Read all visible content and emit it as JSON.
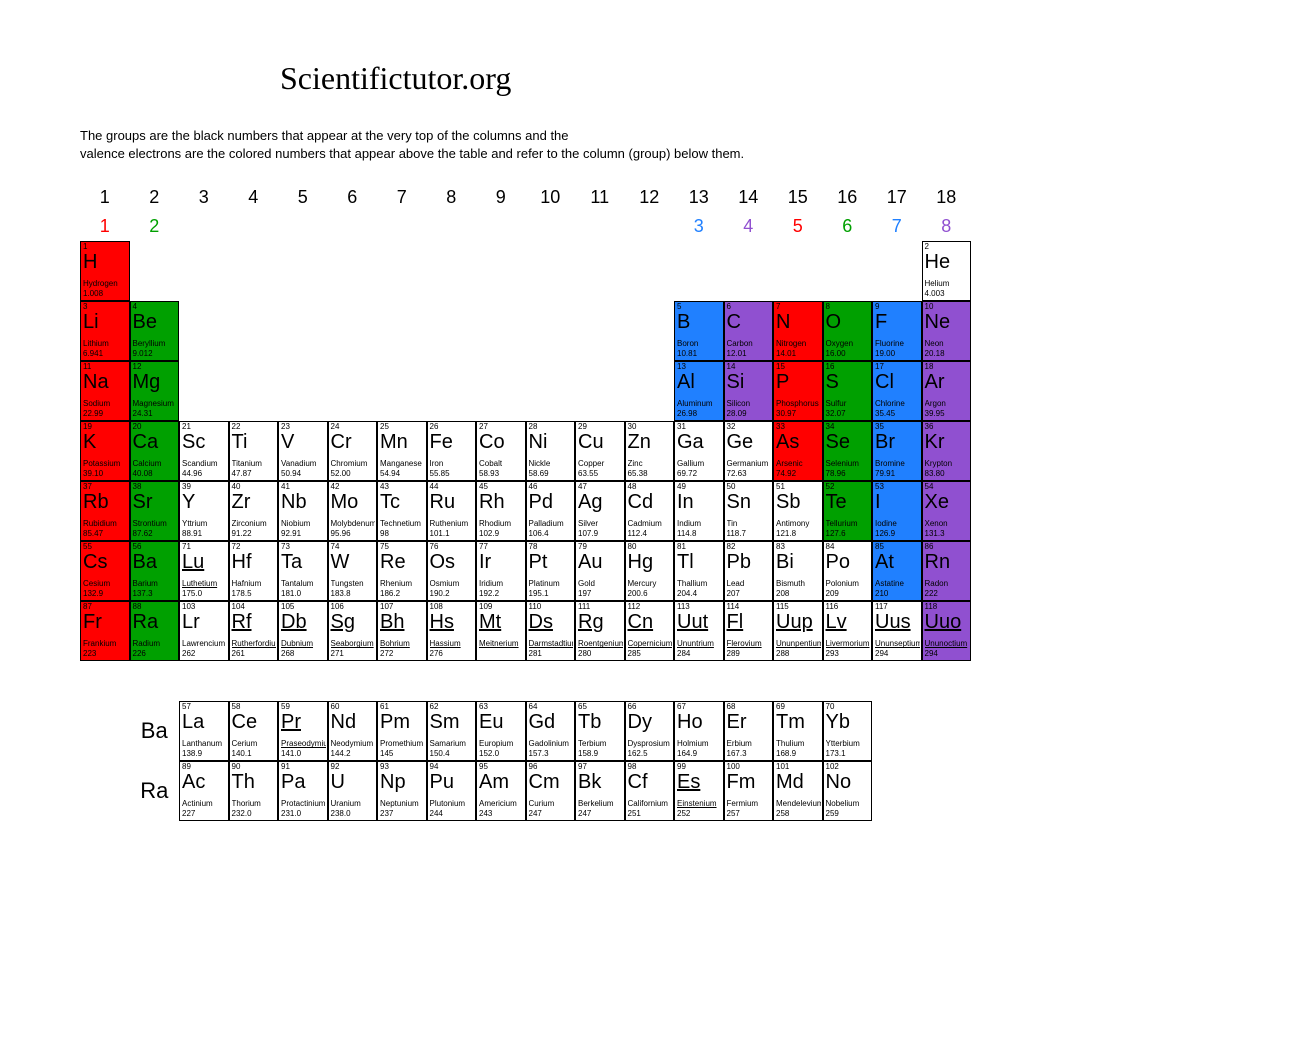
{
  "title": "Scientifictutor.org",
  "description_line1": "The groups are the black numbers that appear at the very top of the columns and the",
  "description_line2": "valence electrons are the colored numbers that appear above the table and refer to the column (group) below them.",
  "groups": [
    "1",
    "2",
    "3",
    "4",
    "5",
    "6",
    "7",
    "8",
    "9",
    "10",
    "11",
    "12",
    "13",
    "14",
    "15",
    "16",
    "17",
    "18"
  ],
  "valence": [
    {
      "col": 1,
      "n": "1",
      "color": "#ff0000"
    },
    {
      "col": 2,
      "n": "2",
      "color": "#00a000"
    },
    {
      "col": 13,
      "n": "3",
      "color": "#2080ff"
    },
    {
      "col": 14,
      "n": "4",
      "color": "#9050d0"
    },
    {
      "col": 15,
      "n": "5",
      "color": "#ff0000"
    },
    {
      "col": 16,
      "n": "6",
      "color": "#00a000"
    },
    {
      "col": 17,
      "n": "7",
      "color": "#2080ff"
    },
    {
      "col": 18,
      "n": "8",
      "color": "#9050d0"
    }
  ],
  "colors": {
    "red": "#ff0000",
    "green": "#00a000",
    "blue": "#2080ff",
    "purple": "#9050d0",
    "white": "#ffffff",
    "black": "#000000"
  },
  "elements": [
    {
      "r": 1,
      "c": 1,
      "n": "1",
      "s": "H",
      "name": "Hydrogen",
      "m": "1.008",
      "bg": "#ff0000"
    },
    {
      "r": 1,
      "c": 18,
      "n": "2",
      "s": "He",
      "name": "Helium",
      "m": "4.003",
      "bg": "#ffffff"
    },
    {
      "r": 2,
      "c": 1,
      "n": "3",
      "s": "Li",
      "name": "Lithium",
      "m": "6.941",
      "bg": "#ff0000"
    },
    {
      "r": 2,
      "c": 2,
      "n": "4",
      "s": "Be",
      "name": "Beryllium",
      "m": "9.012",
      "bg": "#00a000"
    },
    {
      "r": 2,
      "c": 13,
      "n": "5",
      "s": "B",
      "name": "Boron",
      "m": "10.81",
      "bg": "#2080ff"
    },
    {
      "r": 2,
      "c": 14,
      "n": "6",
      "s": "C",
      "name": "Carbon",
      "m": "12.01",
      "bg": "#9050d0"
    },
    {
      "r": 2,
      "c": 15,
      "n": "7",
      "s": "N",
      "name": "Nitrogen",
      "m": "14.01",
      "bg": "#ff0000"
    },
    {
      "r": 2,
      "c": 16,
      "n": "8",
      "s": "O",
      "name": "Oxygen",
      "m": "16.00",
      "bg": "#00a000"
    },
    {
      "r": 2,
      "c": 17,
      "n": "9",
      "s": "F",
      "name": "Fluorine",
      "m": "19.00",
      "bg": "#2080ff"
    },
    {
      "r": 2,
      "c": 18,
      "n": "10",
      "s": "Ne",
      "name": "Neon",
      "m": "20.18",
      "bg": "#9050d0"
    },
    {
      "r": 3,
      "c": 1,
      "n": "11",
      "s": "Na",
      "name": "Sodium",
      "m": "22.99",
      "bg": "#ff0000"
    },
    {
      "r": 3,
      "c": 2,
      "n": "12",
      "s": "Mg",
      "name": "Magnesium",
      "m": "24.31",
      "bg": "#00a000"
    },
    {
      "r": 3,
      "c": 13,
      "n": "13",
      "s": "Al",
      "name": "Aluminum",
      "m": "26.98",
      "bg": "#2080ff"
    },
    {
      "r": 3,
      "c": 14,
      "n": "14",
      "s": "Si",
      "name": "Silicon",
      "m": "28.09",
      "bg": "#9050d0"
    },
    {
      "r": 3,
      "c": 15,
      "n": "15",
      "s": "P",
      "name": "Phosphorus",
      "m": "30.97",
      "bg": "#ff0000"
    },
    {
      "r": 3,
      "c": 16,
      "n": "16",
      "s": "S",
      "name": "Sulfur",
      "m": "32.07",
      "bg": "#00a000"
    },
    {
      "r": 3,
      "c": 17,
      "n": "17",
      "s": "Cl",
      "name": "Chlorine",
      "m": "35.45",
      "bg": "#2080ff"
    },
    {
      "r": 3,
      "c": 18,
      "n": "18",
      "s": "Ar",
      "name": "Argon",
      "m": "39.95",
      "bg": "#9050d0"
    },
    {
      "r": 4,
      "c": 1,
      "n": "19",
      "s": "K",
      "name": "Potassium",
      "m": "39.10",
      "bg": "#ff0000"
    },
    {
      "r": 4,
      "c": 2,
      "n": "20",
      "s": "Ca",
      "name": "Calcium",
      "m": "40.08",
      "bg": "#00a000"
    },
    {
      "r": 4,
      "c": 3,
      "n": "21",
      "s": "Sc",
      "name": "Scandium",
      "m": "44.96",
      "bg": "#ffffff"
    },
    {
      "r": 4,
      "c": 4,
      "n": "22",
      "s": "Ti",
      "name": "Titanium",
      "m": "47.87",
      "bg": "#ffffff"
    },
    {
      "r": 4,
      "c": 5,
      "n": "23",
      "s": "V",
      "name": "Vanadium",
      "m": "50.94",
      "bg": "#ffffff"
    },
    {
      "r": 4,
      "c": 6,
      "n": "24",
      "s": "Cr",
      "name": "Chromium",
      "m": "52.00",
      "bg": "#ffffff"
    },
    {
      "r": 4,
      "c": 7,
      "n": "25",
      "s": "Mn",
      "name": "Manganese",
      "m": "54.94",
      "bg": "#ffffff"
    },
    {
      "r": 4,
      "c": 8,
      "n": "26",
      "s": "Fe",
      "name": "Iron",
      "m": "55.85",
      "bg": "#ffffff"
    },
    {
      "r": 4,
      "c": 9,
      "n": "27",
      "s": "Co",
      "name": "Cobalt",
      "m": "58.93",
      "bg": "#ffffff"
    },
    {
      "r": 4,
      "c": 10,
      "n": "28",
      "s": "Ni",
      "name": "Nickle",
      "m": "58.69",
      "bg": "#ffffff"
    },
    {
      "r": 4,
      "c": 11,
      "n": "29",
      "s": "Cu",
      "name": "Copper",
      "m": "63.55",
      "bg": "#ffffff"
    },
    {
      "r": 4,
      "c": 12,
      "n": "30",
      "s": "Zn",
      "name": "Zinc",
      "m": "65.38",
      "bg": "#ffffff"
    },
    {
      "r": 4,
      "c": 13,
      "n": "31",
      "s": "Ga",
      "name": "Gallium",
      "m": "69.72",
      "bg": "#ffffff"
    },
    {
      "r": 4,
      "c": 14,
      "n": "32",
      "s": "Ge",
      "name": "Germanium",
      "m": "72.63",
      "bg": "#ffffff"
    },
    {
      "r": 4,
      "c": 15,
      "n": "33",
      "s": "As",
      "name": "Arsenic",
      "m": "74.92",
      "bg": "#ff0000"
    },
    {
      "r": 4,
      "c": 16,
      "n": "34",
      "s": "Se",
      "name": "Selenium",
      "m": "78.96",
      "bg": "#00a000"
    },
    {
      "r": 4,
      "c": 17,
      "n": "35",
      "s": "Br",
      "name": "Bromine",
      "m": "79.91",
      "bg": "#2080ff"
    },
    {
      "r": 4,
      "c": 18,
      "n": "36",
      "s": "Kr",
      "name": "Krypton",
      "m": "83.80",
      "bg": "#9050d0"
    },
    {
      "r": 5,
      "c": 1,
      "n": "37",
      "s": "Rb",
      "name": "Rubidium",
      "m": "85.47",
      "bg": "#ff0000"
    },
    {
      "r": 5,
      "c": 2,
      "n": "38",
      "s": "Sr",
      "name": "Strontium",
      "m": "87.62",
      "bg": "#00a000"
    },
    {
      "r": 5,
      "c": 3,
      "n": "39",
      "s": "Y",
      "name": "Yttrium",
      "m": "88.91",
      "bg": "#ffffff"
    },
    {
      "r": 5,
      "c": 4,
      "n": "40",
      "s": "Zr",
      "name": "Zirconium",
      "m": "91.22",
      "bg": "#ffffff"
    },
    {
      "r": 5,
      "c": 5,
      "n": "41",
      "s": "Nb",
      "name": "Niobium",
      "m": "92.91",
      "bg": "#ffffff"
    },
    {
      "r": 5,
      "c": 6,
      "n": "42",
      "s": "Mo",
      "name": "Molybdenum",
      "m": "95.96",
      "bg": "#ffffff"
    },
    {
      "r": 5,
      "c": 7,
      "n": "43",
      "s": "Tc",
      "name": "Technetium",
      "m": "98",
      "bg": "#ffffff"
    },
    {
      "r": 5,
      "c": 8,
      "n": "44",
      "s": "Ru",
      "name": "Ruthenium",
      "m": "101.1",
      "bg": "#ffffff"
    },
    {
      "r": 5,
      "c": 9,
      "n": "45",
      "s": "Rh",
      "name": "Rhodium",
      "m": "102.9",
      "bg": "#ffffff"
    },
    {
      "r": 5,
      "c": 10,
      "n": "46",
      "s": "Pd",
      "name": "Palladium",
      "m": "106.4",
      "bg": "#ffffff"
    },
    {
      "r": 5,
      "c": 11,
      "n": "47",
      "s": "Ag",
      "name": "Silver",
      "m": "107.9",
      "bg": "#ffffff"
    },
    {
      "r": 5,
      "c": 12,
      "n": "48",
      "s": "Cd",
      "name": "Cadmium",
      "m": "112.4",
      "bg": "#ffffff"
    },
    {
      "r": 5,
      "c": 13,
      "n": "49",
      "s": "In",
      "name": "Indium",
      "m": "114.8",
      "bg": "#ffffff"
    },
    {
      "r": 5,
      "c": 14,
      "n": "50",
      "s": "Sn",
      "name": "Tin",
      "m": "118.7",
      "bg": "#ffffff"
    },
    {
      "r": 5,
      "c": 15,
      "n": "51",
      "s": "Sb",
      "name": "Antimony",
      "m": "121.8",
      "bg": "#ffffff"
    },
    {
      "r": 5,
      "c": 16,
      "n": "52",
      "s": "Te",
      "name": "Tellurium",
      "m": "127.6",
      "bg": "#00a000"
    },
    {
      "r": 5,
      "c": 17,
      "n": "53",
      "s": "I",
      "name": "Iodine",
      "m": "126.9",
      "bg": "#2080ff"
    },
    {
      "r": 5,
      "c": 18,
      "n": "54",
      "s": "Xe",
      "name": "Xenon",
      "m": "131.3",
      "bg": "#9050d0"
    },
    {
      "r": 6,
      "c": 1,
      "n": "55",
      "s": "Cs",
      "name": "Cesium",
      "m": "132.9",
      "bg": "#ff0000"
    },
    {
      "r": 6,
      "c": 2,
      "n": "56",
      "s": "Ba",
      "name": "Barium",
      "m": "137.3",
      "bg": "#00a000"
    },
    {
      "r": 6,
      "c": 3,
      "n": "71",
      "s": "Lu",
      "name": "Luthetium",
      "m": "175.0",
      "bg": "#ffffff",
      "ul": true
    },
    {
      "r": 6,
      "c": 4,
      "n": "72",
      "s": "Hf",
      "name": "Hafnium",
      "m": "178.5",
      "bg": "#ffffff"
    },
    {
      "r": 6,
      "c": 5,
      "n": "73",
      "s": "Ta",
      "name": "Tantalum",
      "m": "181.0",
      "bg": "#ffffff"
    },
    {
      "r": 6,
      "c": 6,
      "n": "74",
      "s": "W",
      "name": "Tungsten",
      "m": "183.8",
      "bg": "#ffffff"
    },
    {
      "r": 6,
      "c": 7,
      "n": "75",
      "s": "Re",
      "name": "Rhenium",
      "m": "186.2",
      "bg": "#ffffff"
    },
    {
      "r": 6,
      "c": 8,
      "n": "76",
      "s": "Os",
      "name": "Osmium",
      "m": "190.2",
      "bg": "#ffffff"
    },
    {
      "r": 6,
      "c": 9,
      "n": "77",
      "s": "Ir",
      "name": "Iridium",
      "m": "192.2",
      "bg": "#ffffff"
    },
    {
      "r": 6,
      "c": 10,
      "n": "78",
      "s": "Pt",
      "name": "Platinum",
      "m": "195.1",
      "bg": "#ffffff"
    },
    {
      "r": 6,
      "c": 11,
      "n": "79",
      "s": "Au",
      "name": "Gold",
      "m": "197",
      "bg": "#ffffff"
    },
    {
      "r": 6,
      "c": 12,
      "n": "80",
      "s": "Hg",
      "name": "Mercury",
      "m": "200.6",
      "bg": "#ffffff"
    },
    {
      "r": 6,
      "c": 13,
      "n": "81",
      "s": "Tl",
      "name": "Thallium",
      "m": "204.4",
      "bg": "#ffffff"
    },
    {
      "r": 6,
      "c": 14,
      "n": "82",
      "s": "Pb",
      "name": "Lead",
      "m": "207",
      "bg": "#ffffff"
    },
    {
      "r": 6,
      "c": 15,
      "n": "83",
      "s": "Bi",
      "name": "Bismuth",
      "m": "208",
      "bg": "#ffffff"
    },
    {
      "r": 6,
      "c": 16,
      "n": "84",
      "s": "Po",
      "name": "Polonium",
      "m": "209",
      "bg": "#ffffff"
    },
    {
      "r": 6,
      "c": 17,
      "n": "85",
      "s": "At",
      "name": "Astatine",
      "m": "210",
      "bg": "#2080ff"
    },
    {
      "r": 6,
      "c": 18,
      "n": "86",
      "s": "Rn",
      "name": "Radon",
      "m": "222",
      "bg": "#9050d0"
    },
    {
      "r": 7,
      "c": 1,
      "n": "87",
      "s": "Fr",
      "name": "Frankium",
      "m": "223",
      "bg": "#ff0000"
    },
    {
      "r": 7,
      "c": 2,
      "n": "88",
      "s": "Ra",
      "name": "Radium",
      "m": "226",
      "bg": "#00a000"
    },
    {
      "r": 7,
      "c": 3,
      "n": "103",
      "s": "Lr",
      "name": "Lawrencium",
      "m": "262",
      "bg": "#ffffff"
    },
    {
      "r": 7,
      "c": 4,
      "n": "104",
      "s": "Rf",
      "name": "Rutherfordium",
      "m": "261",
      "bg": "#ffffff",
      "ul": true
    },
    {
      "r": 7,
      "c": 5,
      "n": "105",
      "s": "Db",
      "name": "Dubnium",
      "m": "268",
      "bg": "#ffffff",
      "ul": true
    },
    {
      "r": 7,
      "c": 6,
      "n": "106",
      "s": "Sg",
      "name": "Seaborgium",
      "m": "271",
      "bg": "#ffffff",
      "ul": true
    },
    {
      "r": 7,
      "c": 7,
      "n": "107",
      "s": "Bh",
      "name": "Bohrium",
      "m": "272",
      "bg": "#ffffff",
      "ul": true
    },
    {
      "r": 7,
      "c": 8,
      "n": "108",
      "s": "Hs",
      "name": "Hassium",
      "m": "276",
      "bg": "#ffffff",
      "ul": true
    },
    {
      "r": 7,
      "c": 9,
      "n": "109",
      "s": "Mt",
      "name": "Meitnerium",
      "m": "",
      "bg": "#ffffff",
      "ul": true
    },
    {
      "r": 7,
      "c": 10,
      "n": "110",
      "s": "Ds",
      "name": "Darmstadtium",
      "m": "281",
      "bg": "#ffffff",
      "ul": true
    },
    {
      "r": 7,
      "c": 11,
      "n": "111",
      "s": "Rg",
      "name": "Roentgenium",
      "m": "280",
      "bg": "#ffffff",
      "ul": true
    },
    {
      "r": 7,
      "c": 12,
      "n": "112",
      "s": "Cn",
      "name": "Copernicium",
      "m": "285",
      "bg": "#ffffff",
      "ul": true
    },
    {
      "r": 7,
      "c": 13,
      "n": "113",
      "s": "Uut",
      "name": "Ununtrium",
      "m": "284",
      "bg": "#ffffff",
      "ul": true
    },
    {
      "r": 7,
      "c": 14,
      "n": "114",
      "s": "Fl",
      "name": "Flerovium",
      "m": "289",
      "bg": "#ffffff",
      "ul": true
    },
    {
      "r": 7,
      "c": 15,
      "n": "115",
      "s": "Uup",
      "name": "Ununpentium",
      "m": "288",
      "bg": "#ffffff",
      "ul": true
    },
    {
      "r": 7,
      "c": 16,
      "n": "116",
      "s": "Lv",
      "name": "Livermorium",
      "m": "293",
      "bg": "#ffffff",
      "ul": true
    },
    {
      "r": 7,
      "c": 17,
      "n": "117",
      "s": "Uus",
      "name": "Ununseptium",
      "m": "294",
      "bg": "#ffffff",
      "ul": true
    },
    {
      "r": 7,
      "c": 18,
      "n": "118",
      "s": "Uuo",
      "name": "Ununoctium",
      "m": "294",
      "bg": "#9050d0",
      "ul": true
    }
  ],
  "fblock_labels": [
    "Ba",
    "Ra"
  ],
  "lanthanides": [
    {
      "n": "57",
      "s": "La",
      "name": "Lanthanum",
      "m": "138.9"
    },
    {
      "n": "58",
      "s": "Ce",
      "name": "Cerium",
      "m": "140.1"
    },
    {
      "n": "59",
      "s": "Pr",
      "name": "Praseodymium",
      "m": "141.0",
      "ul": true
    },
    {
      "n": "60",
      "s": "Nd",
      "name": "Neodymium",
      "m": "144.2"
    },
    {
      "n": "61",
      "s": "Pm",
      "name": "Promethium",
      "m": "145"
    },
    {
      "n": "62",
      "s": "Sm",
      "name": "Samarium",
      "m": "150.4"
    },
    {
      "n": "63",
      "s": "Eu",
      "name": "Europium",
      "m": "152.0"
    },
    {
      "n": "64",
      "s": "Gd",
      "name": "Gadolinium",
      "m": "157.3"
    },
    {
      "n": "65",
      "s": "Tb",
      "name": "Terbium",
      "m": "158.9"
    },
    {
      "n": "66",
      "s": "Dy",
      "name": "Dysprosium",
      "m": "162.5"
    },
    {
      "n": "67",
      "s": "Ho",
      "name": "Holmium",
      "m": "164.9"
    },
    {
      "n": "68",
      "s": "Er",
      "name": "Erbium",
      "m": "167.3"
    },
    {
      "n": "69",
      "s": "Tm",
      "name": "Thulium",
      "m": "168.9"
    },
    {
      "n": "70",
      "s": "Yb",
      "name": "Ytterbium",
      "m": "173.1"
    }
  ],
  "actinides": [
    {
      "n": "89",
      "s": "Ac",
      "name": "Actinium",
      "m": "227"
    },
    {
      "n": "90",
      "s": "Th",
      "name": "Thorium",
      "m": "232.0"
    },
    {
      "n": "91",
      "s": "Pa",
      "name": "Protactinium",
      "m": "231.0"
    },
    {
      "n": "92",
      "s": "U",
      "name": "Uranium",
      "m": "238.0"
    },
    {
      "n": "93",
      "s": "Np",
      "name": "Neptunium",
      "m": "237"
    },
    {
      "n": "94",
      "s": "Pu",
      "name": "Plutonium",
      "m": "244"
    },
    {
      "n": "95",
      "s": "Am",
      "name": "Americium",
      "m": "243"
    },
    {
      "n": "96",
      "s": "Cm",
      "name": "Curium",
      "m": "247"
    },
    {
      "n": "97",
      "s": "Bk",
      "name": "Berkelium",
      "m": "247"
    },
    {
      "n": "98",
      "s": "Cf",
      "name": "Californium",
      "m": "251"
    },
    {
      "n": "99",
      "s": "Es",
      "name": "Einstenium",
      "m": "252",
      "ul": true
    },
    {
      "n": "100",
      "s": "Fm",
      "name": "Fermium",
      "m": "257"
    },
    {
      "n": "101",
      "s": "Md",
      "name": "Mendelevium",
      "m": "258"
    },
    {
      "n": "102",
      "s": "No",
      "name": "Nobelium",
      "m": "259"
    }
  ]
}
